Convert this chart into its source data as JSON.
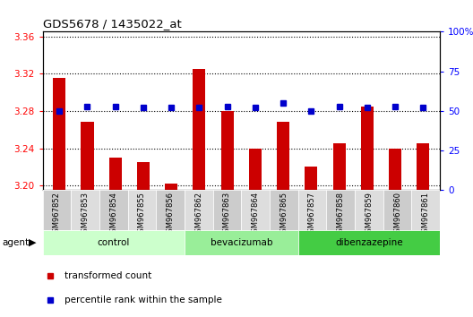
{
  "title": "GDS5678 / 1435022_at",
  "samples": [
    "GSM967852",
    "GSM967853",
    "GSM967854",
    "GSM967855",
    "GSM967856",
    "GSM967862",
    "GSM967863",
    "GSM967864",
    "GSM967865",
    "GSM967857",
    "GSM967858",
    "GSM967859",
    "GSM967860",
    "GSM967861"
  ],
  "bar_values": [
    3.315,
    3.268,
    3.23,
    3.225,
    3.202,
    3.325,
    3.28,
    3.24,
    3.268,
    3.22,
    3.245,
    3.285,
    3.24,
    3.245
  ],
  "percentile_values": [
    50,
    53,
    53,
    52,
    52,
    52,
    53,
    52,
    55,
    50,
    53,
    52,
    53,
    52
  ],
  "groups": [
    {
      "label": "control",
      "start": 0,
      "end": 5,
      "color": "#ccffcc"
    },
    {
      "label": "bevacizumab",
      "start": 5,
      "end": 9,
      "color": "#99ee99"
    },
    {
      "label": "dibenzazepine",
      "start": 9,
      "end": 14,
      "color": "#44cc44"
    }
  ],
  "ylim_left": [
    3.195,
    3.365
  ],
  "ylim_right": [
    0,
    100
  ],
  "yticks_left": [
    3.2,
    3.24,
    3.28,
    3.32,
    3.36
  ],
  "yticks_right": [
    0,
    25,
    50,
    75,
    100
  ],
  "bar_color": "#cc0000",
  "dot_color": "#0000cc",
  "bar_bottom": 3.195,
  "plot_bg_color": "#ffffff",
  "tick_cell_colors": [
    "#cccccc",
    "#dddddd"
  ],
  "agent_label": "agent",
  "legend_items": [
    {
      "label": "transformed count",
      "color": "#cc0000"
    },
    {
      "label": "percentile rank within the sample",
      "color": "#0000cc"
    }
  ]
}
